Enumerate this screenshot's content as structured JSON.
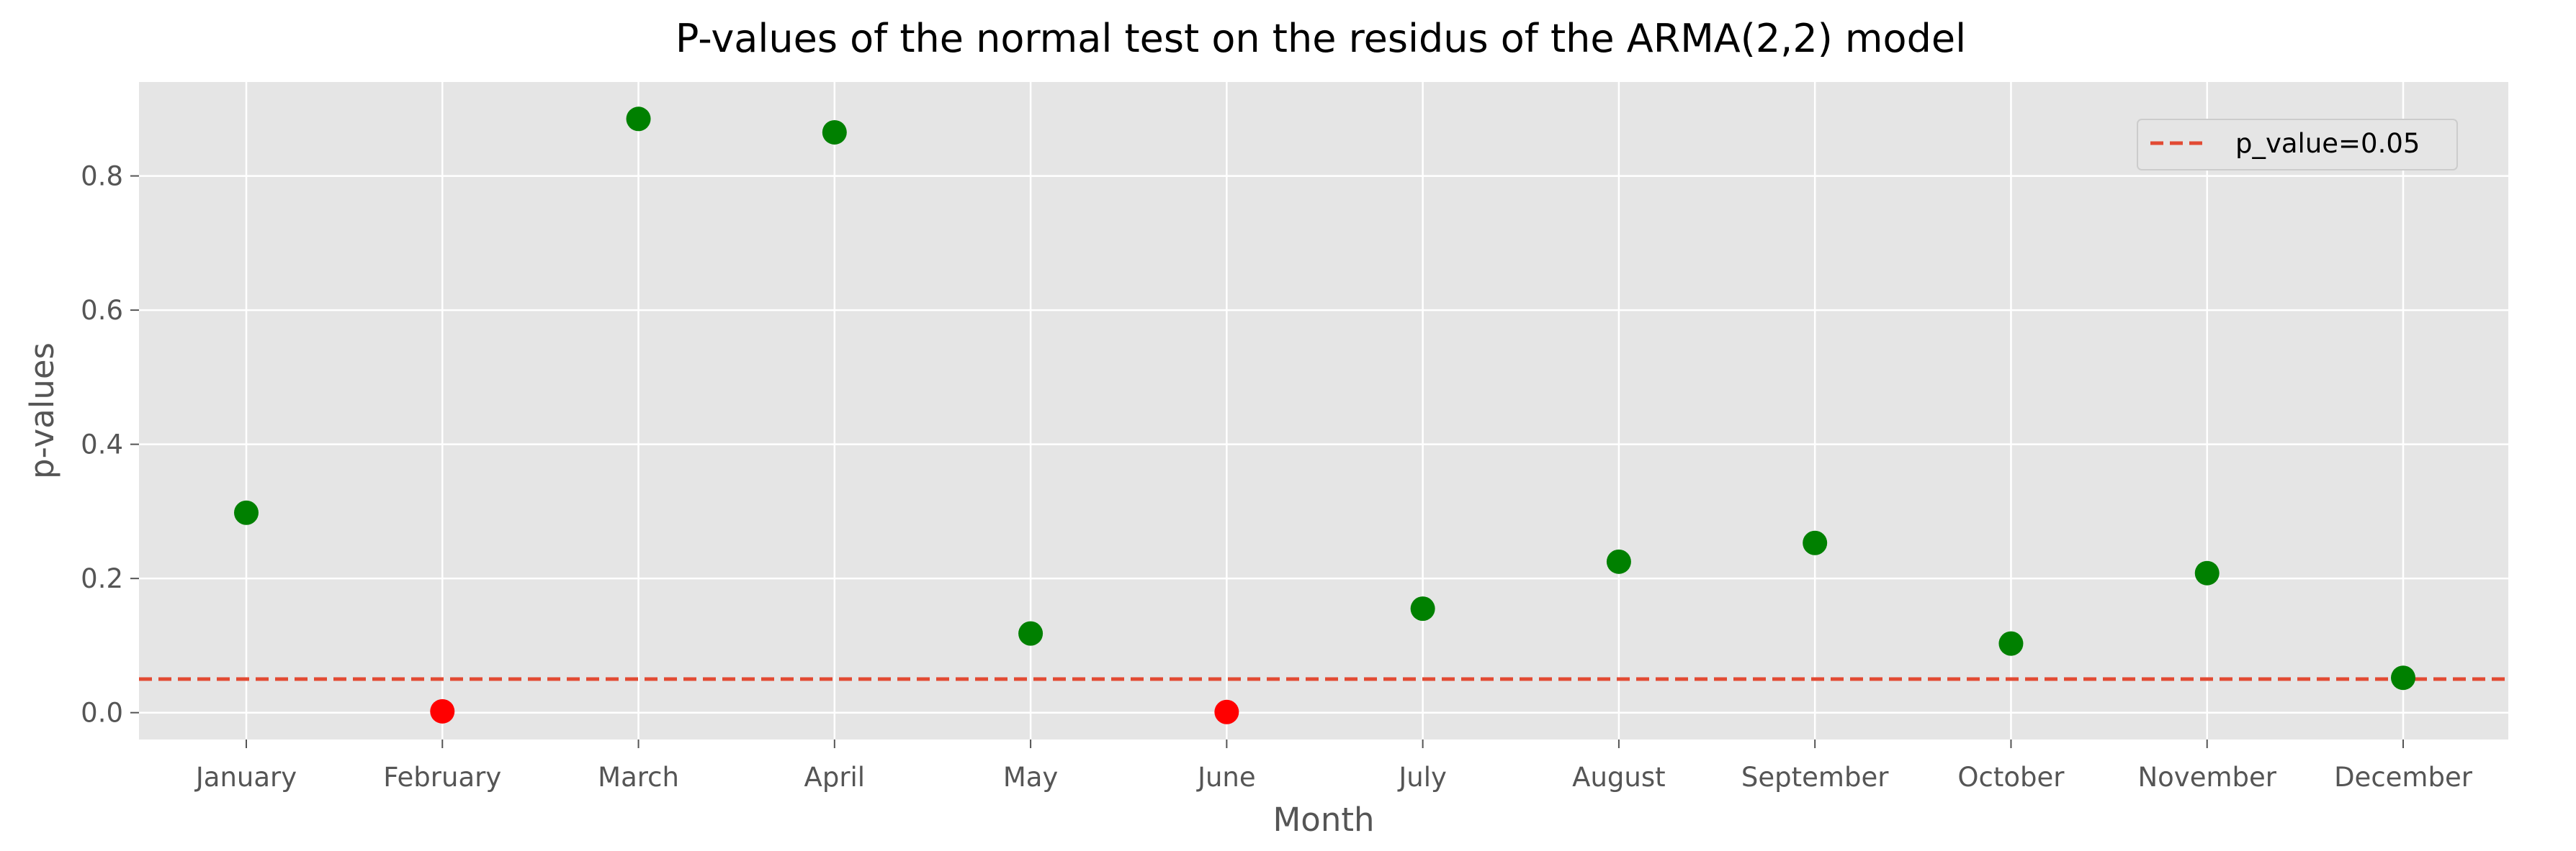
{
  "chart_data": {
    "type": "scatter",
    "title": "P-values of the normal test on the residus of the ARMA(2,2) model",
    "xlabel": "Month",
    "ylabel": "p-values",
    "categories": [
      "January",
      "February",
      "March",
      "April",
      "May",
      "June",
      "July",
      "August",
      "September",
      "October",
      "November",
      "December"
    ],
    "values": [
      0.298,
      0.002,
      0.885,
      0.865,
      0.118,
      0.001,
      0.155,
      0.225,
      0.253,
      0.103,
      0.208,
      0.052
    ],
    "point_colors": [
      "#008000",
      "#ff0000",
      "#008000",
      "#008000",
      "#008000",
      "#ff0000",
      "#008000",
      "#008000",
      "#008000",
      "#008000",
      "#008000",
      "#008000"
    ],
    "ylim": [
      -0.04,
      0.94
    ],
    "yticks": [
      0.0,
      0.2,
      0.4,
      0.6,
      0.8
    ],
    "ytick_labels": [
      "0.0",
      "0.2",
      "0.4",
      "0.6",
      "0.8"
    ],
    "threshold": {
      "value": 0.05,
      "label": "p_value=0.05",
      "color": "#e24a33",
      "style": "dashed"
    },
    "grid": true,
    "legend_position": "top-right",
    "colors": {
      "background": "#e5e5e5",
      "grid": "#ffffff",
      "significant": "#008000",
      "not_significant": "#ff0000"
    }
  }
}
